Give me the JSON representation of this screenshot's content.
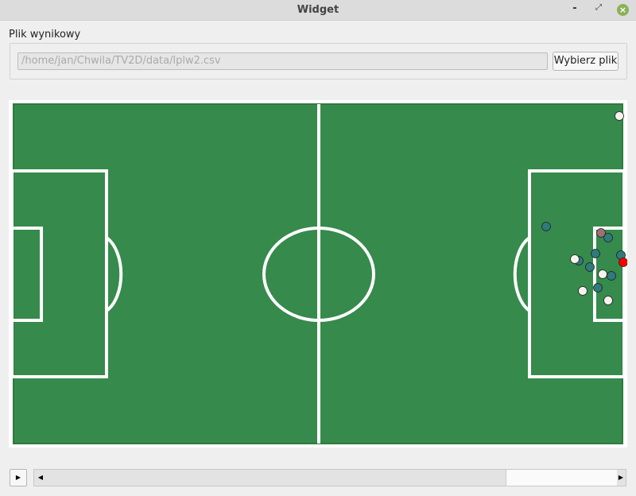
{
  "window": {
    "title": "Widget"
  },
  "form": {
    "label": "Plik wynikowy",
    "path": "/home/jan/Chwila/TV2D/data/lplw2.csv",
    "button": "Wybierz plik"
  }
}
